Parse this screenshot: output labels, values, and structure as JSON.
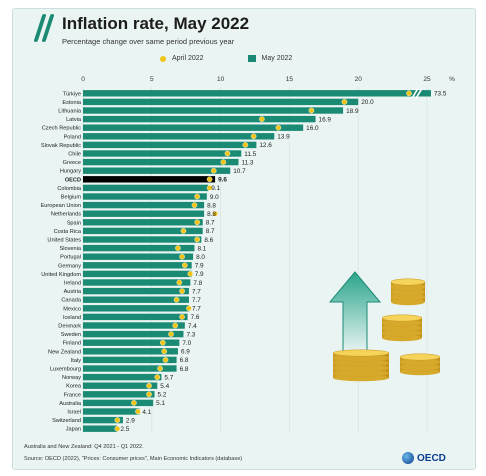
{
  "header": {
    "title": "Inflation rate, May 2022",
    "subtitle": "Percentage change over same period previous year"
  },
  "legend": {
    "april_label": "April 2022",
    "may_label": "May 2022"
  },
  "footer": {
    "note": "Australia and New Zealand: Q4 2021 - Q1 2022.",
    "source": "Source: OECD (2022), \"Prices: Consumer prices\", Main Economic Indicators (database)",
    "logo_text": "OECD"
  },
  "colors": {
    "bar": "#1b8a74",
    "april_dot": "#f0c419",
    "oecd_bar": "#000000",
    "background": "#e9f4f3"
  },
  "chart_data": {
    "type": "bar",
    "orientation": "horizontal",
    "title": "Inflation rate, May 2022",
    "subtitle": "Percentage change over same period previous year",
    "unit": "%",
    "xlim": [
      0,
      25
    ],
    "xticks": [
      0,
      5,
      10,
      15,
      20,
      25
    ],
    "axis_break": true,
    "categories": [
      "Türkiye",
      "Estonia",
      "Lithuania",
      "Latvia",
      "Czech Republic",
      "Poland",
      "Slovak Republic",
      "Chile",
      "Greece",
      "Hungary",
      "OECD",
      "Colombia",
      "Belgium",
      "European Union",
      "Netherlands",
      "Spain",
      "Costa Rica",
      "United States",
      "Slovenia",
      "Portugal",
      "Germany",
      "United Kingdom",
      "Ireland",
      "Austria",
      "Canada",
      "Mexico",
      "Iceland",
      "Denmark",
      "Sweden",
      "Finland",
      "New Zealand",
      "Italy",
      "Luxembourg",
      "Norway",
      "Korea",
      "France",
      "Australia",
      "Israel",
      "Switzerland",
      "Japan"
    ],
    "series": [
      {
        "name": "May 2022",
        "kind": "bar",
        "values": [
          73.5,
          20.0,
          18.9,
          16.9,
          16.0,
          13.9,
          12.6,
          11.5,
          11.3,
          10.7,
          9.6,
          9.1,
          9.0,
          8.8,
          8.8,
          8.7,
          8.7,
          8.6,
          8.1,
          8.0,
          7.9,
          7.9,
          7.8,
          7.7,
          7.7,
          7.7,
          7.6,
          7.4,
          7.3,
          7.0,
          6.9,
          6.8,
          6.8,
          5.7,
          5.4,
          5.2,
          5.1,
          4.1,
          2.9,
          2.5
        ]
      },
      {
        "name": "April 2022",
        "kind": "dot",
        "values": [
          70.0,
          19.0,
          16.6,
          13.0,
          14.2,
          12.4,
          11.8,
          10.5,
          10.2,
          9.5,
          9.2,
          9.2,
          8.3,
          8.1,
          9.6,
          8.3,
          7.3,
          8.3,
          6.9,
          7.2,
          7.4,
          7.8,
          7.0,
          7.2,
          6.8,
          7.7,
          7.2,
          6.7,
          6.4,
          5.8,
          5.9,
          6.0,
          5.6,
          5.4,
          4.8,
          4.8,
          3.7,
          4.0,
          2.5,
          2.5
        ]
      }
    ],
    "highlight": "OECD"
  }
}
